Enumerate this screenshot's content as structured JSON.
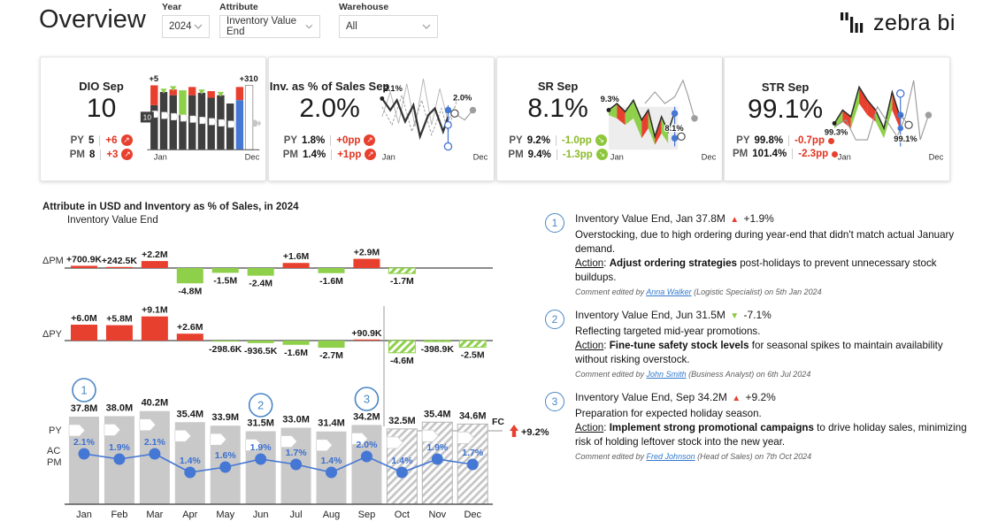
{
  "header": {
    "title": "Overview",
    "filters": [
      {
        "label": "Year",
        "value": "2024"
      },
      {
        "label": "Attribute",
        "value": "Inventory Value End"
      },
      {
        "label": "Warehouse",
        "value": "All"
      }
    ],
    "logo_text": "zebra bi"
  },
  "colors": {
    "red": "#e8402f",
    "green": "#8ed04a",
    "red_text": "#e0331f",
    "green_text": "#8ab926",
    "blue": "#4577d4",
    "blue_text": "#3a6fd0",
    "gray_bar": "#c9c9c9",
    "dark_bar": "#3f3f3f",
    "axis": "#8c8c8c",
    "comment_blue": "#4a86c5"
  },
  "kpi_cards": [
    {
      "id": "dio",
      "title": "DIO Sep",
      "value": "10",
      "rows": [
        {
          "label": "PY",
          "value": "5",
          "delta": "+6",
          "delta_class": "red",
          "marker": "red-up"
        },
        {
          "label": "PM",
          "value": "8",
          "delta": "+3",
          "delta_class": "red",
          "marker": "red-up"
        }
      ],
      "spark": {
        "type": "bar",
        "ann_a": "+5",
        "ann_b": "+310",
        "badge": "10",
        "x_start": "Jan",
        "x_end": "Dec"
      }
    },
    {
      "id": "inv-pct-sales",
      "title": "Inv. as % of Sales Sep",
      "value": "2.0%",
      "rows": [
        {
          "label": "PY",
          "value": "1.8%",
          "delta": "+0pp",
          "delta_class": "red",
          "marker": "red-up"
        },
        {
          "label": "PM",
          "value": "1.4%",
          "delta": "+1pp",
          "delta_class": "red",
          "marker": "red-up"
        }
      ],
      "spark": {
        "type": "line",
        "ann_a": "2.1%",
        "ann_b": "2.0%",
        "x_start": "Jan",
        "x_end": "Dec"
      }
    },
    {
      "id": "sr",
      "title": "SR Sep",
      "value": "8.1%",
      "rows": [
        {
          "label": "PY",
          "value": "9.2%",
          "delta": "-1.0pp",
          "delta_class": "green",
          "marker": "green-down"
        },
        {
          "label": "PM",
          "value": "9.4%",
          "delta": "-1.3pp",
          "delta_class": "green",
          "marker": "green-down"
        }
      ],
      "spark": {
        "type": "ribbon",
        "ann_a": "9.3%",
        "ann_b": "8.1%",
        "x_start": "Jan",
        "x_end": "Dec"
      }
    },
    {
      "id": "str",
      "title": "STR Sep",
      "value": "99.1%",
      "rows": [
        {
          "label": "PY",
          "value": "99.8%",
          "delta": "-0.7pp",
          "delta_class": "red",
          "marker": "red-dot"
        },
        {
          "label": "PM",
          "value": "101.4%",
          "delta": "-2.3pp",
          "delta_class": "red",
          "marker": "red-dot"
        }
      ],
      "spark": {
        "type": "ribbon2",
        "ann_a": "99.3%",
        "ann_b": "99.1%",
        "x_start": "Jan",
        "x_end": "Dec"
      }
    }
  ],
  "main_chart": {
    "title": "Attribute in USD and Inventory as % of Sales, in 2024",
    "subtitle": "Inventory Value End",
    "dpm_label": "ΔPM",
    "dpy_label": "ΔPY",
    "py_label": "PY",
    "ac_label": "AC",
    "pm_label": "PM",
    "fc_label": "FC",
    "fc_delta": "+9.2%",
    "comment_markers": [
      {
        "n": "1",
        "month": 0,
        "y": 213
      },
      {
        "n": "2",
        "month": 5,
        "y": 230
      },
      {
        "n": "3",
        "month": 8,
        "y": 223
      }
    ]
  },
  "chart_data": [
    {
      "type": "bar",
      "title": "Attribute in USD and Inventory as % of Sales, in 2024",
      "subtitle": "Inventory Value End",
      "categories": [
        "Jan",
        "Feb",
        "Mar",
        "Apr",
        "May",
        "Jun",
        "Jul",
        "Aug",
        "Sep",
        "Oct",
        "Nov",
        "Dec"
      ],
      "forecast_start_index": 9,
      "series": [
        {
          "name": "AC/FC Inventory Value End (M USD)",
          "values": [
            37.8,
            38.0,
            40.2,
            35.4,
            33.9,
            31.5,
            33.0,
            31.4,
            34.2,
            32.5,
            35.4,
            34.6
          ],
          "labels": [
            "37.8M",
            "38.0M",
            "40.2M",
            "35.4M",
            "33.9M",
            "31.5M",
            "33.0M",
            "31.4M",
            "34.2M",
            "32.5M",
            "35.4M",
            "34.6M"
          ]
        },
        {
          "name": "Inventory as % of Sales (AC PM)",
          "values": [
            2.1,
            1.9,
            2.1,
            1.4,
            1.6,
            1.9,
            1.7,
            1.4,
            2.0,
            1.4,
            1.9,
            1.7
          ],
          "labels": [
            "2.1%",
            "1.9%",
            "2.1%",
            "1.4%",
            "1.6%",
            "1.9%",
            "1.7%",
            "1.4%",
            "2.0%",
            "1.4%",
            "1.9%",
            "1.7%"
          ]
        },
        {
          "name": "ΔPM (M USD)",
          "values": [
            0.7009,
            0.2425,
            2.2,
            -4.8,
            -1.5,
            -2.4,
            1.6,
            -1.6,
            2.9,
            -1.7,
            null,
            null
          ],
          "labels": [
            "+700.9K",
            "+242.5K",
            "+2.2M",
            "-4.8M",
            "-1.5M",
            "-2.4M",
            "+1.6M",
            "-1.6M",
            "+2.9M",
            "-1.7M",
            "",
            ""
          ]
        },
        {
          "name": "ΔPY (M USD)",
          "values": [
            6.0,
            5.8,
            9.1,
            2.6,
            -0.2986,
            -0.9365,
            -1.6,
            -2.7,
            0.0909,
            -4.6,
            -0.3989,
            -2.5
          ],
          "labels": [
            "+6.0M",
            "+5.8M",
            "+9.1M",
            "+2.6M",
            "-298.6K",
            "-936.5K",
            "-1.6M",
            "-2.7M",
            "+90.9K",
            "-4.6M",
            "-398.9K",
            "-2.5M"
          ]
        }
      ],
      "fc_total_delta": "+9.2%",
      "legend_position": "left-axis (PY, AC PM)",
      "grid": false
    },
    {
      "type": "bar",
      "title": "DIO Sep",
      "kpi_value": "10",
      "py": "5",
      "py_delta": "+6",
      "pm": "8",
      "pm_delta": "+3",
      "annotations": [
        "+5",
        "+310",
        "10"
      ],
      "x_range": [
        "Jan",
        "Dec"
      ]
    },
    {
      "type": "line",
      "title": "Inv. as % of Sales Sep",
      "kpi_value": "2.0%",
      "py": "1.8%",
      "py_delta": "+0pp",
      "pm": "1.4%",
      "pm_delta": "+1pp",
      "annotations": [
        "2.1%",
        "2.0%"
      ],
      "x_range": [
        "Jan",
        "Dec"
      ]
    },
    {
      "type": "area",
      "title": "SR Sep",
      "kpi_value": "8.1%",
      "py": "9.2%",
      "py_delta": "-1.0pp",
      "pm": "9.4%",
      "pm_delta": "-1.3pp",
      "annotations": [
        "9.3%",
        "8.1%"
      ],
      "x_range": [
        "Jan",
        "Dec"
      ]
    },
    {
      "type": "area",
      "title": "STR Sep",
      "kpi_value": "99.1%",
      "py": "99.8%",
      "py_delta": "-0.7pp",
      "pm": "101.4%",
      "pm_delta": "-2.3pp",
      "annotations": [
        "99.3%",
        "99.1%"
      ],
      "x_range": [
        "Jan",
        "Dec"
      ]
    }
  ],
  "comments": [
    {
      "n": "1",
      "title": "Inventory Value End, Jan 37.8M",
      "arrow": "up",
      "delta": "+1.9%",
      "body": "Overstocking, due to high ordering during year-end that didn't match actual January demand.",
      "action_label": "Action",
      "action_bold": "Adjust ordering strategies",
      "action_rest": " post-holidays to prevent unnecessary stock buildups.",
      "footer_prefix": "Comment edited by ",
      "author": "Anna Walker",
      "footer_suffix": " (Logistic Specialist) on 5th Jan 2024"
    },
    {
      "n": "2",
      "title": "Inventory Value End, Jun 31.5M",
      "arrow": "down",
      "delta": "-7.1%",
      "body": "Reflecting targeted mid-year promotions.",
      "action_label": "Action",
      "action_bold": "Fine-tune safety stock levels",
      "action_rest": " for seasonal spikes to maintain availability without risking overstock.",
      "footer_prefix": "Comment edited by ",
      "author": "John Smith",
      "footer_suffix": " (Business Analyst) on 6th Jul 2024"
    },
    {
      "n": "3",
      "title": "Inventory Value End, Sep 34.2M",
      "arrow": "up",
      "delta": "+9.2%",
      "body": "Preparation for expected holiday season.",
      "action_label": "Action",
      "action_bold": "Implement strong promotional campaigns",
      "action_rest": " to drive holiday sales, minimizing risk of holding leftover stock into the new year.",
      "footer_prefix": "Comment edited by ",
      "author": "Fred Johnson",
      "footer_suffix": " (Head of Sales) on 7th Oct 2024"
    }
  ]
}
